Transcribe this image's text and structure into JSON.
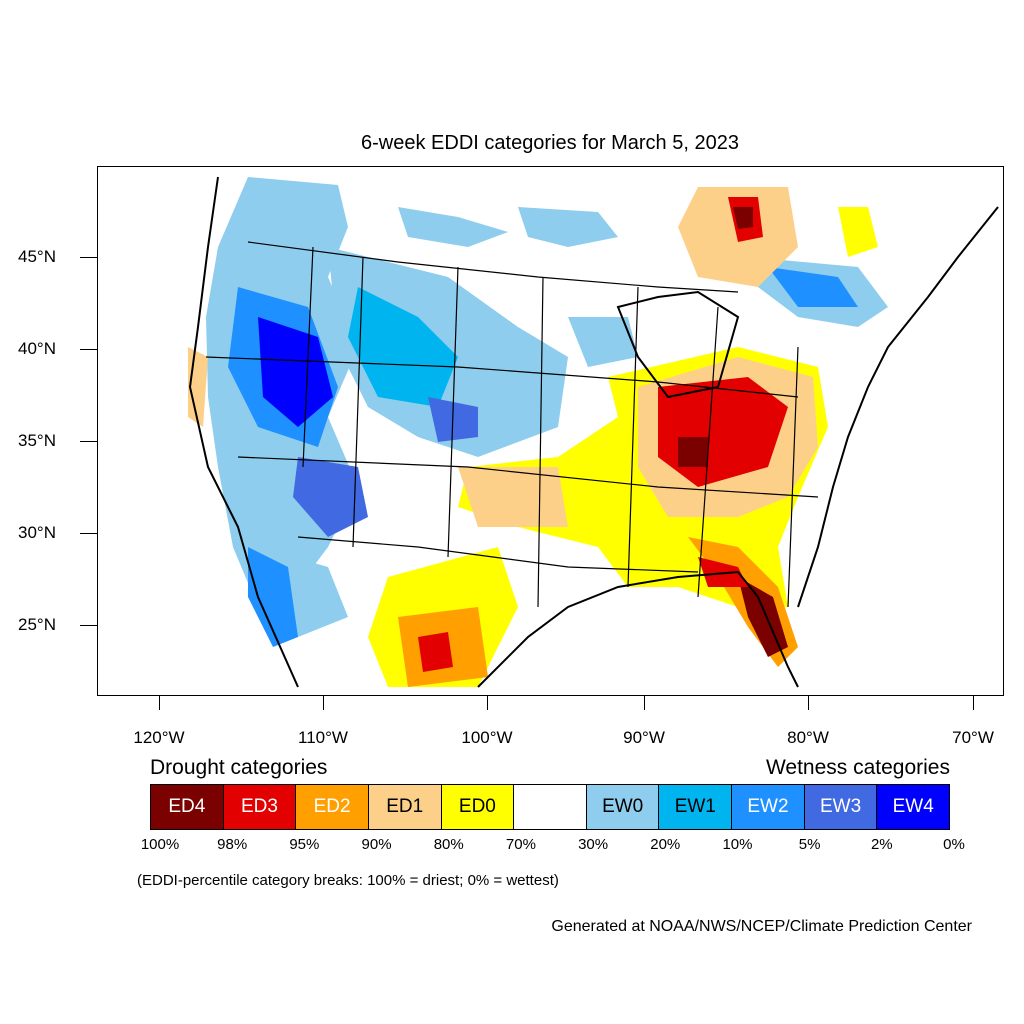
{
  "title": "6-week EDDI categories for March 5, 2023",
  "y_ticks": [
    "45°N",
    "40°N",
    "35°N",
    "30°N",
    "25°N"
  ],
  "x_ticks": [
    "120°W",
    "110°W",
    "100°W",
    "90°W",
    "80°W",
    "70°W"
  ],
  "legend": {
    "drought_heading": "Drought categories",
    "wetness_heading": "Wetness categories",
    "categories": [
      {
        "label": "ED4",
        "color": "#7b0000",
        "text_color": "#ffffff"
      },
      {
        "label": "ED3",
        "color": "#e20000",
        "text_color": "#ffffff"
      },
      {
        "label": "ED2",
        "color": "#ff9f00",
        "text_color": "#ffffff"
      },
      {
        "label": "ED1",
        "color": "#fdd08a",
        "text_color": "#000000"
      },
      {
        "label": "ED0",
        "color": "#ffff00",
        "text_color": "#000000"
      },
      {
        "label": "",
        "color": "#ffffff",
        "text_color": "#000000"
      },
      {
        "label": "EW0",
        "color": "#8ecdee",
        "text_color": "#000000"
      },
      {
        "label": "EW1",
        "color": "#00b4f0",
        "text_color": "#000000"
      },
      {
        "label": "EW2",
        "color": "#1e90ff",
        "text_color": "#ffffff"
      },
      {
        "label": "EW3",
        "color": "#4169e1",
        "text_color": "#ffffff"
      },
      {
        "label": "EW4",
        "color": "#0000ff",
        "text_color": "#ffffff"
      }
    ],
    "percentiles": [
      "100%",
      "98%",
      "95%",
      "90%",
      "80%",
      "70%",
      "30%",
      "20%",
      "10%",
      "5%",
      "2%",
      "0%"
    ]
  },
  "note": "(EDDI-percentile category breaks: 100% = driest; 0% = wettest)",
  "credit": "Generated at NOAA/NWS/NCEP/Climate Prediction Center"
}
